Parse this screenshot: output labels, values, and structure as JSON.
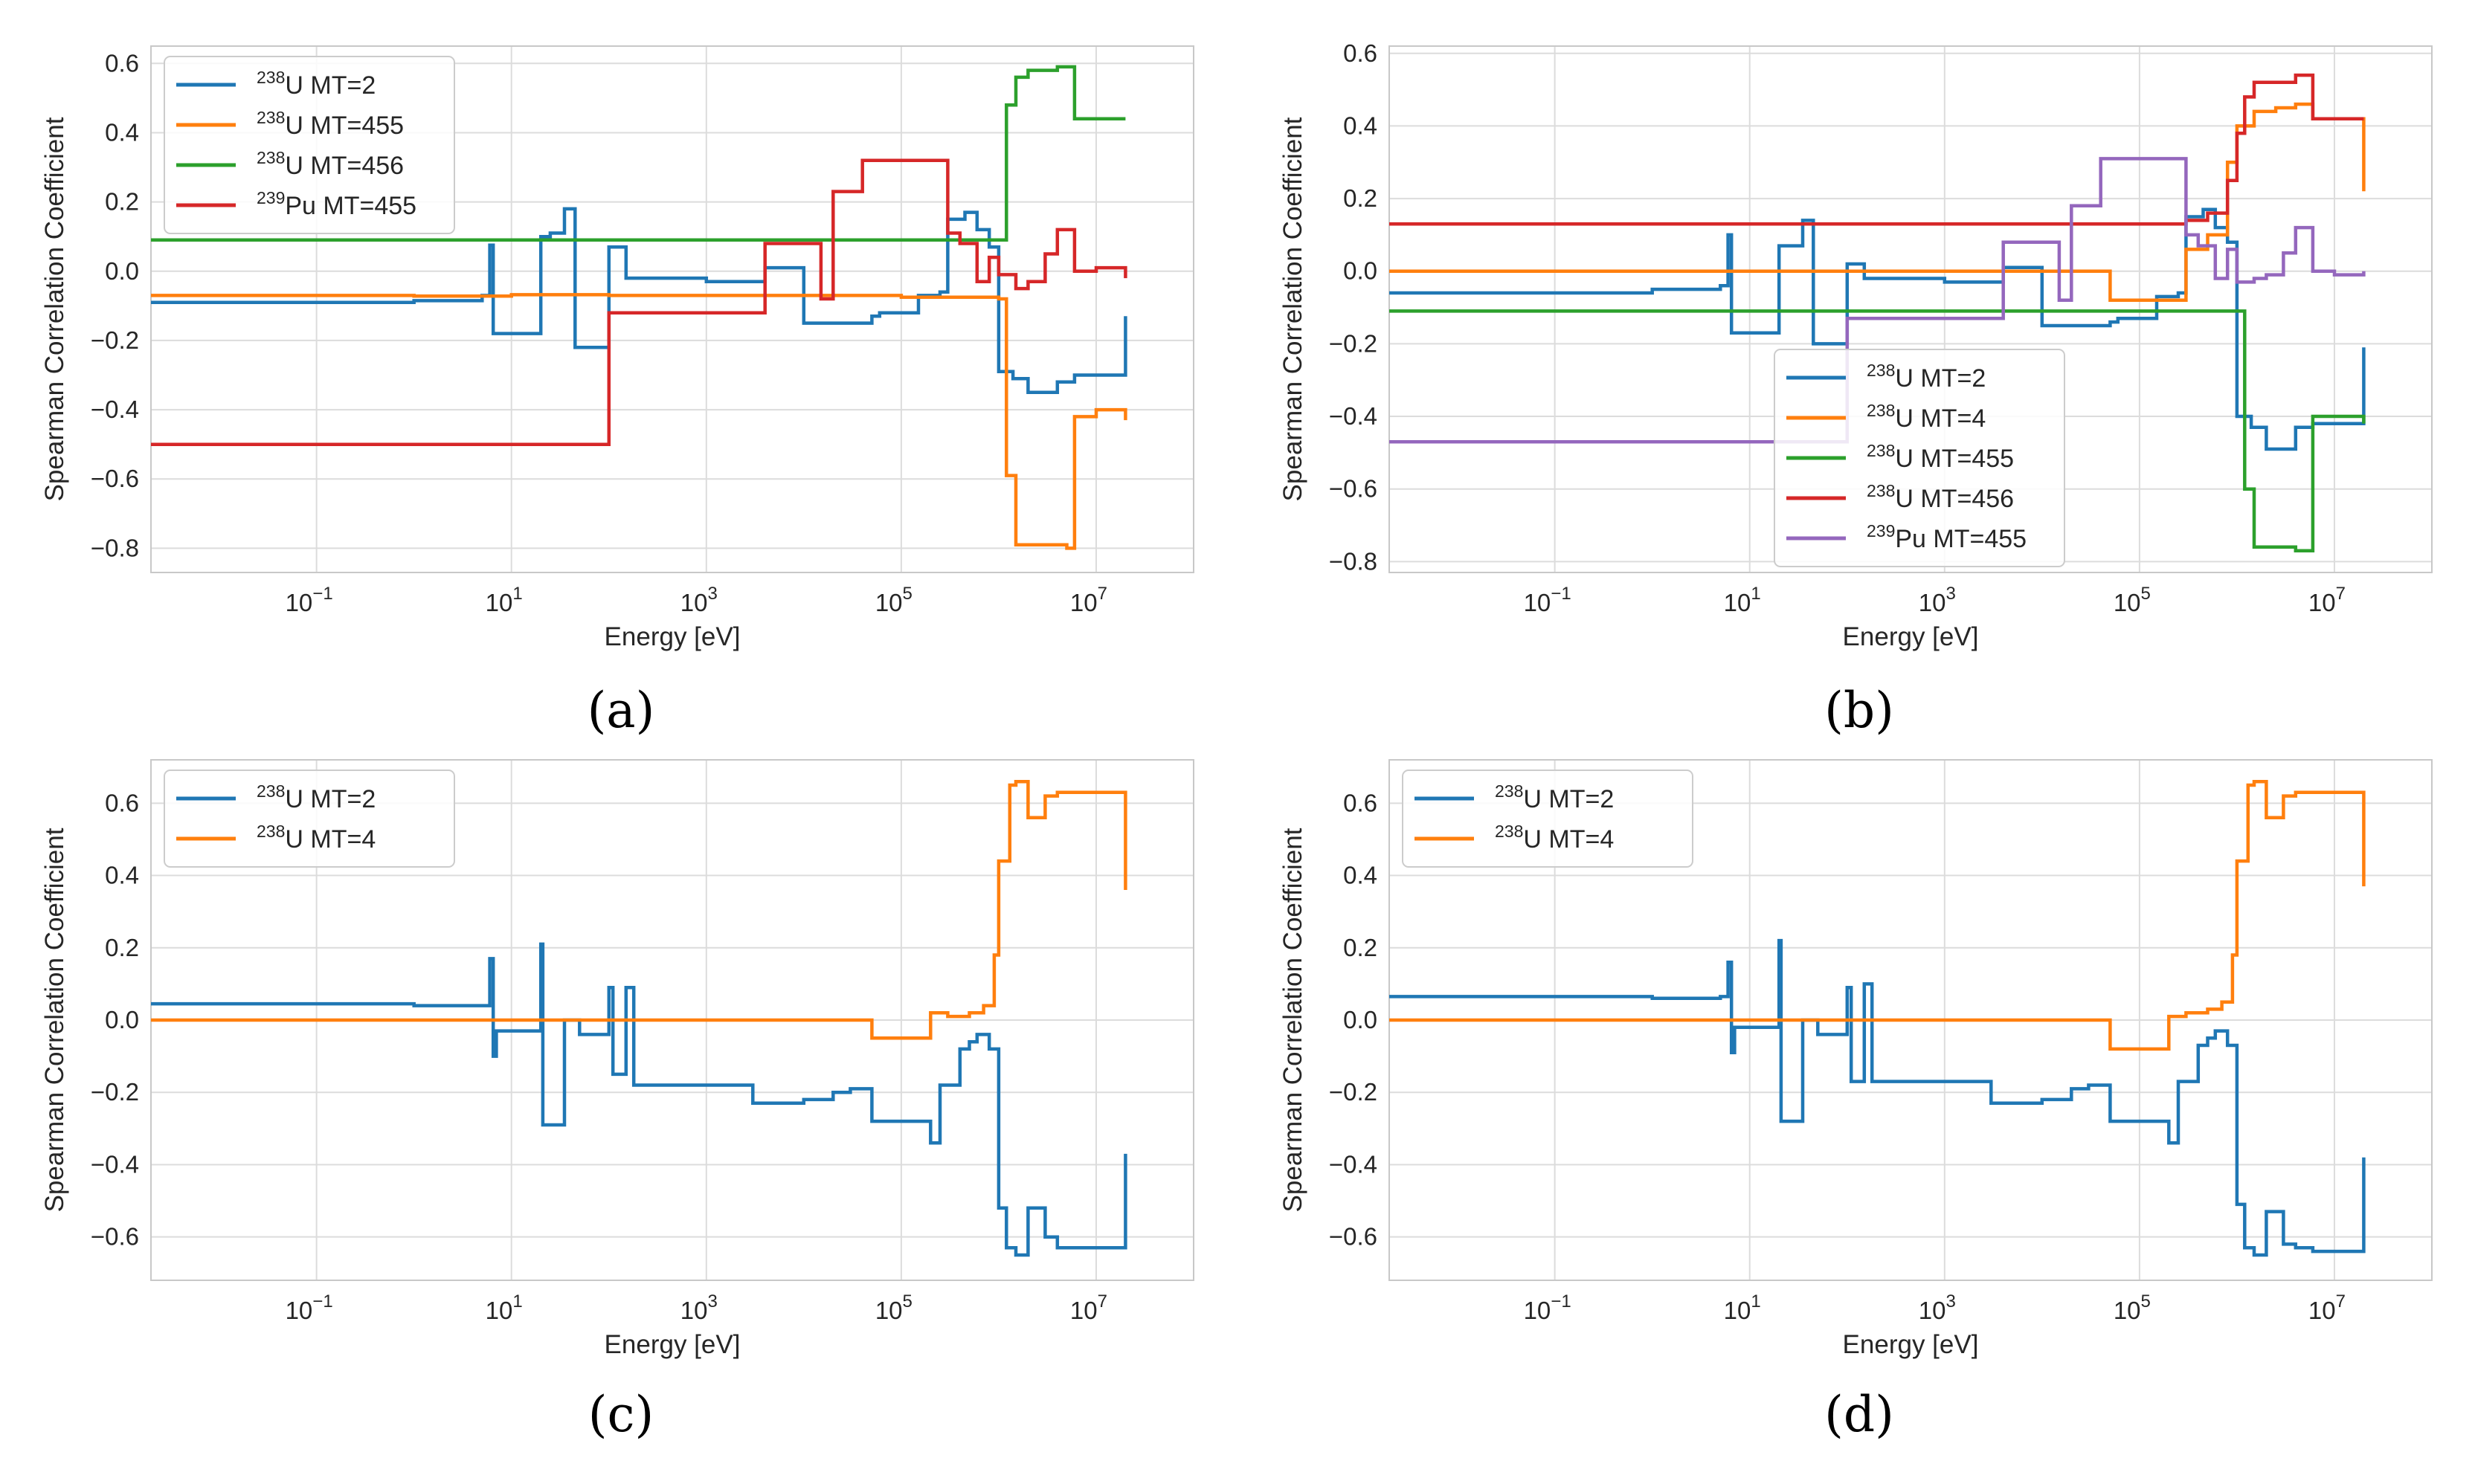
{
  "panel_labels": [
    "(a)",
    "(b)",
    "(c)",
    "(d)"
  ],
  "colors": {
    "blue": "#1f77b4",
    "orange": "#ff7f0e",
    "green": "#2ca02c",
    "red": "#d62728",
    "purple": "#9467bd",
    "grid": "#dcdcdc",
    "axes": "#c8c8c8"
  },
  "chart_data": [
    {
      "type": "line",
      "panel": "(a)",
      "title": "",
      "xlabel": "Energy [eV]",
      "ylabel": "Spearman Correlation Coefficient",
      "xscale": "log",
      "xlim": [
        0.002,
        100000000
      ],
      "ylim": [
        -0.87,
        0.65
      ],
      "yticks": [
        -0.8,
        -0.6,
        -0.4,
        -0.2,
        0.0,
        0.2,
        0.4,
        0.6
      ],
      "ytick_labels": [
        "−0.8",
        "−0.6",
        "−0.4",
        "−0.2",
        "0.0",
        "0.2",
        "0.4",
        "0.6"
      ],
      "xticks": [
        0.1,
        10,
        1000,
        100000,
        10000000
      ],
      "xtick_labels": [
        [
          "10",
          "−1"
        ],
        [
          "10",
          "1"
        ],
        [
          "10",
          "3"
        ],
        [
          "10",
          "5"
        ],
        [
          "10",
          "7"
        ]
      ],
      "grid": true,
      "legend": "upper left",
      "series": [
        {
          "sup": "238",
          "name": "U MT=2",
          "color": "blue",
          "x": [
            1e-05,
            1,
            5,
            6,
            6.5,
            7,
            20,
            25,
            35,
            45,
            60,
            100,
            150,
            1000,
            2500,
            4000,
            10000,
            50000,
            60000,
            150000,
            250000,
            300000,
            450000,
            600000,
            800000,
            1000000,
            1400000,
            2000000,
            4000000,
            6000000,
            20000000
          ],
          "y": [
            -0.09,
            -0.085,
            -0.07,
            0.075,
            -0.18,
            -0.18,
            0.1,
            0.11,
            0.18,
            -0.22,
            -0.22,
            0.07,
            -0.02,
            -0.03,
            -0.03,
            0.01,
            -0.15,
            -0.13,
            -0.12,
            -0.07,
            -0.06,
            0.15,
            0.17,
            0.12,
            0.07,
            -0.29,
            -0.31,
            -0.35,
            -0.32,
            -0.3,
            -0.13
          ]
        },
        {
          "sup": "238",
          "name": "U MT=455",
          "color": "orange",
          "x": [
            1e-05,
            0.1,
            1,
            10,
            100,
            1000,
            10000,
            100000,
            1000000,
            1200000,
            1500000,
            2000000,
            5000000,
            6000000,
            10000000,
            20000000
          ],
          "y": [
            -0.07,
            -0.07,
            -0.072,
            -0.068,
            -0.07,
            -0.07,
            -0.07,
            -0.075,
            -0.08,
            -0.59,
            -0.79,
            -0.79,
            -0.8,
            -0.42,
            -0.4,
            -0.43
          ]
        },
        {
          "sup": "238",
          "name": "U MT=456",
          "color": "green",
          "x": [
            1e-05,
            1000,
            1000000,
            1200000,
            1500000,
            2000000,
            4000000,
            6000000,
            20000000
          ],
          "y": [
            0.09,
            0.09,
            0.09,
            0.48,
            0.56,
            0.58,
            0.59,
            0.44,
            0.44
          ]
        },
        {
          "sup": "239",
          "name": "Pu MT=455",
          "color": "red",
          "x": [
            1e-05,
            100,
            3000,
            4000,
            15000,
            20000,
            40000,
            300000,
            400000,
            600000,
            800000,
            1000000,
            1500000,
            2000000,
            3000000,
            4000000,
            6000000,
            10000000,
            20000000
          ],
          "y": [
            -0.5,
            -0.12,
            -0.12,
            0.08,
            -0.08,
            0.23,
            0.32,
            0.11,
            0.08,
            -0.03,
            0.04,
            -0.01,
            -0.05,
            -0.03,
            0.05,
            0.12,
            0.0,
            0.01,
            -0.02
          ]
        }
      ]
    },
    {
      "type": "line",
      "panel": "(b)",
      "title": "",
      "xlabel": "Energy [eV]",
      "ylabel": "Spearman Correlation Coefficient",
      "xscale": "log",
      "xlim": [
        0.002,
        100000000
      ],
      "ylim": [
        -0.83,
        0.62
      ],
      "yticks": [
        -0.8,
        -0.6,
        -0.4,
        -0.2,
        0.0,
        0.2,
        0.4,
        0.6
      ],
      "ytick_labels": [
        "−0.8",
        "−0.6",
        "−0.4",
        "−0.2",
        "0.0",
        "0.2",
        "0.4",
        "0.6"
      ],
      "xticks": [
        0.1,
        10,
        1000,
        100000,
        10000000
      ],
      "xtick_labels": [
        [
          "10",
          "−1"
        ],
        [
          "10",
          "1"
        ],
        [
          "10",
          "3"
        ],
        [
          "10",
          "5"
        ],
        [
          "10",
          "7"
        ]
      ],
      "grid": true,
      "legend": "lower center",
      "series": [
        {
          "sup": "238",
          "name": "U MT=2",
          "color": "blue",
          "x": [
            1e-05,
            1,
            5,
            6,
            6.5,
            7,
            20,
            25,
            35,
            45,
            60,
            100,
            150,
            1000,
            2500,
            4000,
            10000,
            50000,
            60000,
            150000,
            250000,
            300000,
            450000,
            600000,
            800000,
            1000000,
            1400000,
            2000000,
            4000000,
            6000000,
            20000000
          ],
          "y": [
            -0.06,
            -0.05,
            -0.04,
            0.1,
            -0.17,
            -0.17,
            0.07,
            0.07,
            0.14,
            -0.2,
            -0.2,
            0.02,
            -0.02,
            -0.03,
            -0.03,
            0.01,
            -0.15,
            -0.14,
            -0.13,
            -0.07,
            -0.06,
            0.15,
            0.17,
            0.12,
            0.08,
            -0.4,
            -0.43,
            -0.49,
            -0.43,
            -0.42,
            -0.21
          ]
        },
        {
          "sup": "238",
          "name": "U MT=4",
          "color": "orange",
          "x": [
            1e-05,
            1000,
            40000,
            50000,
            150000,
            300000,
            500000,
            800000,
            1000000,
            1500000,
            2500000,
            4000000,
            6000000,
            20000000
          ],
          "y": [
            0.0,
            0.0,
            0.0,
            -0.08,
            -0.08,
            0.06,
            0.1,
            0.3,
            0.4,
            0.44,
            0.45,
            0.46,
            0.42,
            0.22
          ]
        },
        {
          "sup": "238",
          "name": "U MT=455",
          "color": "green",
          "x": [
            1e-05,
            1000,
            100000,
            1000000,
            1200000,
            1500000,
            2000000,
            4000000,
            6000000,
            20000000
          ],
          "y": [
            -0.11,
            -0.11,
            -0.11,
            -0.11,
            -0.6,
            -0.76,
            -0.76,
            -0.77,
            -0.4,
            -0.42
          ]
        },
        {
          "sup": "238",
          "name": "U MT=456",
          "color": "red",
          "x": [
            1e-05,
            1000,
            100000,
            300000,
            500000,
            800000,
            1000000,
            1200000,
            1500000,
            2000000,
            4000000,
            6000000,
            20000000
          ],
          "y": [
            0.13,
            0.13,
            0.13,
            0.14,
            0.16,
            0.25,
            0.38,
            0.48,
            0.52,
            0.52,
            0.54,
            0.42,
            0.42
          ]
        },
        {
          "sup": "239",
          "name": "Pu MT=455",
          "color": "purple",
          "x": [
            1e-05,
            100,
            3000,
            4000,
            15000,
            20000,
            40000,
            300000,
            400000,
            600000,
            800000,
            1000000,
            1500000,
            2000000,
            3000000,
            4000000,
            6000000,
            10000000,
            20000000
          ],
          "y": [
            -0.47,
            -0.13,
            -0.13,
            0.08,
            -0.08,
            0.18,
            0.31,
            0.1,
            0.07,
            -0.02,
            0.06,
            -0.03,
            -0.02,
            -0.01,
            0.05,
            0.12,
            0.0,
            -0.01,
            0.0
          ]
        }
      ]
    },
    {
      "type": "line",
      "panel": "(c)",
      "title": "",
      "xlabel": "Energy [eV]",
      "ylabel": "Spearman Correlation Coefficient",
      "xscale": "log",
      "xlim": [
        0.002,
        100000000
      ],
      "ylim": [
        -0.72,
        0.72
      ],
      "yticks": [
        -0.6,
        -0.4,
        -0.2,
        0.0,
        0.2,
        0.4,
        0.6
      ],
      "ytick_labels": [
        "−0.6",
        "−0.4",
        "−0.2",
        "0.0",
        "0.2",
        "0.4",
        "0.6"
      ],
      "xticks": [
        0.1,
        10,
        1000,
        100000,
        10000000
      ],
      "xtick_labels": [
        [
          "10",
          "−1"
        ],
        [
          "10",
          "1"
        ],
        [
          "10",
          "3"
        ],
        [
          "10",
          "5"
        ],
        [
          "10",
          "7"
        ]
      ],
      "grid": true,
      "legend": "upper left",
      "series": [
        {
          "sup": "238",
          "name": "U MT=2",
          "color": "blue",
          "x": [
            1e-05,
            1,
            5,
            6,
            6.5,
            7,
            20,
            21,
            25,
            35,
            45,
            50,
            100,
            110,
            150,
            180,
            1000,
            2500,
            3000,
            10000,
            20000,
            30000,
            50000,
            150000,
            200000,
            250000,
            400000,
            500000,
            600000,
            800000,
            1000000,
            1200000,
            1500000,
            2000000,
            3000000,
            4000000,
            6000000,
            20000000
          ],
          "y": [
            0.045,
            0.04,
            0.04,
            0.17,
            -0.1,
            -0.03,
            0.21,
            -0.29,
            -0.29,
            0.0,
            0.0,
            -0.04,
            0.09,
            -0.15,
            0.09,
            -0.18,
            -0.18,
            -0.18,
            -0.23,
            -0.22,
            -0.2,
            -0.19,
            -0.28,
            -0.28,
            -0.34,
            -0.18,
            -0.08,
            -0.06,
            -0.04,
            -0.08,
            -0.52,
            -0.63,
            -0.65,
            -0.52,
            -0.6,
            -0.63,
            -0.63,
            -0.37
          ]
        },
        {
          "sup": "238",
          "name": "U MT=4",
          "color": "orange",
          "x": [
            1e-05,
            1000,
            40000,
            50000,
            150000,
            200000,
            300000,
            500000,
            700000,
            900000,
            1000000,
            1300000,
            1500000,
            2000000,
            3000000,
            4000000,
            6000000,
            20000000
          ],
          "y": [
            0.0,
            0.0,
            0.0,
            -0.05,
            -0.05,
            0.02,
            0.01,
            0.02,
            0.04,
            0.18,
            0.44,
            0.65,
            0.66,
            0.56,
            0.62,
            0.63,
            0.63,
            0.36
          ]
        }
      ]
    },
    {
      "type": "line",
      "panel": "(d)",
      "title": "",
      "xlabel": "Energy [eV]",
      "ylabel": "Spearman Correlation Coefficient",
      "xscale": "log",
      "xlim": [
        0.002,
        100000000
      ],
      "ylim": [
        -0.72,
        0.72
      ],
      "yticks": [
        -0.6,
        -0.4,
        -0.2,
        0.0,
        0.2,
        0.4,
        0.6
      ],
      "ytick_labels": [
        "−0.6",
        "−0.4",
        "−0.2",
        "0.0",
        "0.2",
        "0.4",
        "0.6"
      ],
      "xticks": [
        0.1,
        10,
        1000,
        100000,
        10000000
      ],
      "xtick_labels": [
        [
          "10",
          "−1"
        ],
        [
          "10",
          "1"
        ],
        [
          "10",
          "3"
        ],
        [
          "10",
          "5"
        ],
        [
          "10",
          "7"
        ]
      ],
      "grid": true,
      "legend": "upper left",
      "series": [
        {
          "sup": "238",
          "name": "U MT=2",
          "color": "blue",
          "x": [
            1e-05,
            1,
            5,
            6,
            6.5,
            7,
            20,
            21,
            25,
            35,
            45,
            50,
            100,
            110,
            150,
            180,
            1000,
            2500,
            3000,
            10000,
            20000,
            30000,
            50000,
            150000,
            200000,
            250000,
            400000,
            500000,
            600000,
            800000,
            1000000,
            1200000,
            1500000,
            2000000,
            3000000,
            4000000,
            6000000,
            20000000
          ],
          "y": [
            0.065,
            0.06,
            0.065,
            0.16,
            -0.09,
            -0.02,
            0.22,
            -0.28,
            -0.28,
            0.0,
            0.0,
            -0.04,
            0.09,
            -0.17,
            0.1,
            -0.17,
            -0.17,
            -0.17,
            -0.23,
            -0.22,
            -0.19,
            -0.18,
            -0.28,
            -0.28,
            -0.34,
            -0.17,
            -0.07,
            -0.05,
            -0.03,
            -0.07,
            -0.51,
            -0.63,
            -0.65,
            -0.53,
            -0.62,
            -0.63,
            -0.64,
            -0.38
          ]
        },
        {
          "sup": "238",
          "name": "U MT=4",
          "color": "orange",
          "x": [
            1e-05,
            1000,
            40000,
            50000,
            150000,
            200000,
            300000,
            500000,
            700000,
            900000,
            1000000,
            1300000,
            1500000,
            2000000,
            3000000,
            4000000,
            6000000,
            20000000
          ],
          "y": [
            0.0,
            0.0,
            0.0,
            -0.08,
            -0.08,
            0.01,
            0.02,
            0.03,
            0.05,
            0.18,
            0.44,
            0.65,
            0.66,
            0.56,
            0.62,
            0.63,
            0.63,
            0.37
          ]
        }
      ]
    }
  ]
}
